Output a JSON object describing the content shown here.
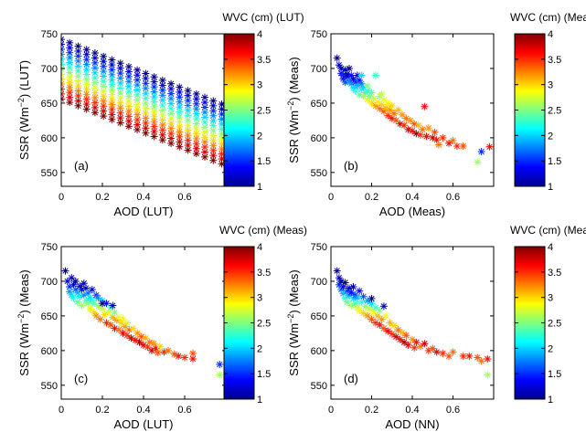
{
  "figure": {
    "panels": [
      {
        "id": "a",
        "label": "(a)",
        "xlabel": "AOD (LUT)",
        "ylabel_pre": "SSR (Wm",
        "ylabel_sup": "−2",
        "ylabel_post": ") (LUT)",
        "colorbar_title": "WVC (cm) (LUT)"
      },
      {
        "id": "b",
        "label": "(b)",
        "xlabel": "AOD (Meas)",
        "ylabel_pre": "SSR (Wm",
        "ylabel_sup": "−2",
        "ylabel_post": ") (Meas)",
        "colorbar_title": "WVC (cm) (Meas)"
      },
      {
        "id": "c",
        "label": "(c)",
        "xlabel": "AOD (LUT)",
        "ylabel_pre": "SSR (Wm",
        "ylabel_sup": "−2",
        "ylabel_post": ") (Meas)",
        "colorbar_title": "WVC (cm) (Meas)"
      },
      {
        "id": "d",
        "label": "(d)",
        "xlabel": "AOD (NN)",
        "ylabel_pre": "SSR (Wm",
        "ylabel_sup": "−2",
        "ylabel_post": ") (Meas)",
        "colorbar_title": "WVC (cm) (Meas)"
      }
    ],
    "marker": "*",
    "colormap": "jet"
  },
  "chart_data": [
    {
      "type": "scatter",
      "panel": "(a)",
      "xlabel": "AOD (LUT)",
      "ylabel": "SSR (Wm−2) (LUT)",
      "xlim": [
        0,
        0.8
      ],
      "ylim": [
        530,
        750
      ],
      "xticks": [
        0,
        0.2,
        0.4,
        0.6
      ],
      "yticks": [
        550,
        600,
        650,
        700,
        750
      ],
      "colorbar": {
        "label": "WVC (cm) (LUT)",
        "range": [
          1,
          4
        ],
        "ticks": [
          1,
          1.5,
          2,
          2.5,
          3,
          3.5,
          4
        ]
      },
      "grid": {
        "aod": [
          0,
          0.78,
          20
        ],
        "wvc": [
          1,
          4,
          13
        ],
        "ssr_at_aod0_wvc1": 742,
        "ssr_at_aod0_wvc4": 656,
        "slope_per_aod": -120
      },
      "points": []
    },
    {
      "type": "scatter",
      "panel": "(b)",
      "xlabel": "AOD (Meas)",
      "ylabel": "SSR (Wm−2) (Meas)",
      "xlim": [
        0,
        0.8
      ],
      "ylim": [
        530,
        750
      ],
      "xticks": [
        0,
        0.2,
        0.4,
        0.6
      ],
      "yticks": [
        550,
        600,
        650,
        700,
        750
      ],
      "colorbar": {
        "label": "WVC (cm) (Meas)",
        "range": [
          1,
          4
        ],
        "ticks": [
          1,
          1.5,
          2,
          2.5,
          3,
          3.5,
          4
        ]
      },
      "points": [
        [
          0.03,
          715,
          1.0
        ],
        [
          0.04,
          705,
          1.2
        ],
        [
          0.05,
          700,
          1.1
        ],
        [
          0.05,
          693,
          1.3
        ],
        [
          0.06,
          690,
          1.5
        ],
        [
          0.06,
          685,
          1.4
        ],
        [
          0.07,
          698,
          1.2
        ],
        [
          0.07,
          680,
          1.6
        ],
        [
          0.08,
          688,
          1.3
        ],
        [
          0.08,
          692,
          1.1
        ],
        [
          0.09,
          700,
          1.0
        ],
        [
          0.09,
          682,
          1.7
        ],
        [
          0.1,
          678,
          1.8
        ],
        [
          0.1,
          690,
          1.4
        ],
        [
          0.11,
          685,
          1.2
        ],
        [
          0.11,
          672,
          2.0
        ],
        [
          0.12,
          680,
          1.5
        ],
        [
          0.12,
          668,
          2.2
        ],
        [
          0.13,
          690,
          1.1
        ],
        [
          0.13,
          675,
          1.9
        ],
        [
          0.14,
          683,
          1.4
        ],
        [
          0.14,
          662,
          2.4
        ],
        [
          0.15,
          670,
          2.1
        ],
        [
          0.15,
          678,
          1.7
        ],
        [
          0.16,
          660,
          2.6
        ],
        [
          0.16,
          673,
          2.0
        ],
        [
          0.17,
          665,
          2.3
        ],
        [
          0.18,
          655,
          2.8
        ],
        [
          0.18,
          668,
          2.2
        ],
        [
          0.19,
          660,
          2.5
        ],
        [
          0.2,
          650,
          3.0
        ],
        [
          0.2,
          665,
          2.4
        ],
        [
          0.21,
          657,
          2.7
        ],
        [
          0.22,
          646,
          3.2
        ],
        [
          0.22,
          690,
          2.3
        ],
        [
          0.23,
          652,
          2.9
        ],
        [
          0.24,
          642,
          3.3
        ],
        [
          0.24,
          660,
          2.6
        ],
        [
          0.25,
          648,
          3.0
        ],
        [
          0.26,
          638,
          3.4
        ],
        [
          0.26,
          655,
          2.8
        ],
        [
          0.27,
          643,
          3.1
        ],
        [
          0.28,
          632,
          3.5
        ],
        [
          0.28,
          650,
          2.9
        ],
        [
          0.29,
          640,
          3.2
        ],
        [
          0.3,
          628,
          3.6
        ],
        [
          0.3,
          646,
          3.0
        ],
        [
          0.31,
          635,
          3.3
        ],
        [
          0.32,
          625,
          3.4
        ],
        [
          0.33,
          640,
          3.1
        ],
        [
          0.34,
          620,
          3.7
        ],
        [
          0.35,
          633,
          3.2
        ],
        [
          0.36,
          618,
          3.5
        ],
        [
          0.37,
          628,
          3.3
        ],
        [
          0.38,
          612,
          3.8
        ],
        [
          0.39,
          625,
          3.2
        ],
        [
          0.4,
          610,
          3.6
        ],
        [
          0.41,
          620,
          3.4
        ],
        [
          0.42,
          606,
          3.9
        ],
        [
          0.43,
          618,
          3.1
        ],
        [
          0.44,
          604,
          3.5
        ],
        [
          0.45,
          612,
          3.3
        ],
        [
          0.46,
          645,
          3.6
        ],
        [
          0.47,
          602,
          3.7
        ],
        [
          0.48,
          614,
          3.2
        ],
        [
          0.5,
          600,
          3.8
        ],
        [
          0.51,
          608,
          3.4
        ],
        [
          0.52,
          597,
          3.6
        ],
        [
          0.53,
          590,
          3.3
        ],
        [
          0.55,
          600,
          3.5
        ],
        [
          0.58,
          592,
          3.6
        ],
        [
          0.6,
          596,
          3.3
        ],
        [
          0.62,
          588,
          3.5
        ],
        [
          0.65,
          588,
          3.4
        ],
        [
          0.72,
          565,
          2.6
        ],
        [
          0.74,
          580,
          1.5
        ],
        [
          0.78,
          587,
          3.6
        ],
        [
          0.18,
          675,
          2.5
        ],
        [
          0.25,
          663,
          2.7
        ],
        [
          0.15,
          690,
          2.0
        ]
      ]
    },
    {
      "type": "scatter",
      "panel": "(c)",
      "xlabel": "AOD (LUT)",
      "ylabel": "SSR (Wm−2) (Meas)",
      "xlim": [
        0,
        0.8
      ],
      "ylim": [
        530,
        750
      ],
      "xticks": [
        0,
        0.2,
        0.4,
        0.6
      ],
      "yticks": [
        550,
        600,
        650,
        700,
        750
      ],
      "colorbar": {
        "label": "WVC (cm) (Meas)",
        "range": [
          1,
          4
        ],
        "ticks": [
          1,
          1.5,
          2,
          2.5,
          3,
          3.5,
          4
        ]
      },
      "points": [
        [
          0.02,
          715,
          1.0
        ],
        [
          0.03,
          700,
          1.2
        ],
        [
          0.04,
          692,
          1.5
        ],
        [
          0.04,
          685,
          1.8
        ],
        [
          0.05,
          705,
          1.1
        ],
        [
          0.05,
          680,
          2.0
        ],
        [
          0.06,
          695,
          1.3
        ],
        [
          0.06,
          676,
          2.2
        ],
        [
          0.07,
          688,
          1.6
        ],
        [
          0.07,
          700,
          1.0
        ],
        [
          0.08,
          683,
          1.9
        ],
        [
          0.08,
          670,
          2.4
        ],
        [
          0.09,
          693,
          1.2
        ],
        [
          0.09,
          678,
          2.1
        ],
        [
          0.1,
          688,
          1.4
        ],
        [
          0.1,
          665,
          2.6
        ],
        [
          0.11,
          680,
          1.8
        ],
        [
          0.11,
          697,
          1.1
        ],
        [
          0.12,
          672,
          2.3
        ],
        [
          0.12,
          690,
          1.3
        ],
        [
          0.13,
          668,
          2.5
        ],
        [
          0.13,
          683,
          1.7
        ],
        [
          0.14,
          660,
          2.8
        ],
        [
          0.14,
          676,
          2.0
        ],
        [
          0.15,
          672,
          2.2
        ],
        [
          0.15,
          688,
          1.2
        ],
        [
          0.16,
          655,
          3.0
        ],
        [
          0.16,
          668,
          2.4
        ],
        [
          0.17,
          680,
          1.5
        ],
        [
          0.17,
          650,
          3.2
        ],
        [
          0.18,
          664,
          2.6
        ],
        [
          0.18,
          676,
          1.8
        ],
        [
          0.19,
          645,
          3.3
        ],
        [
          0.2,
          660,
          2.7
        ],
        [
          0.2,
          672,
          2.0
        ],
        [
          0.21,
          652,
          3.0
        ],
        [
          0.22,
          640,
          3.5
        ],
        [
          0.22,
          668,
          1.4
        ],
        [
          0.23,
          655,
          2.8
        ],
        [
          0.24,
          637,
          3.4
        ],
        [
          0.24,
          662,
          2.3
        ],
        [
          0.25,
          648,
          3.1
        ],
        [
          0.26,
          632,
          3.6
        ],
        [
          0.26,
          655,
          2.5
        ],
        [
          0.27,
          644,
          3.2
        ],
        [
          0.28,
          630,
          3.3
        ],
        [
          0.28,
          648,
          2.8
        ],
        [
          0.29,
          640,
          3.0
        ],
        [
          0.3,
          625,
          3.7
        ],
        [
          0.3,
          645,
          2.9
        ],
        [
          0.31,
          635,
          3.2
        ],
        [
          0.32,
          622,
          3.5
        ],
        [
          0.32,
          640,
          2.7
        ],
        [
          0.33,
          630,
          3.3
        ],
        [
          0.34,
          618,
          3.8
        ],
        [
          0.35,
          632,
          3.0
        ],
        [
          0.36,
          615,
          3.6
        ],
        [
          0.37,
          625,
          3.2
        ],
        [
          0.38,
          612,
          3.9
        ],
        [
          0.39,
          620,
          3.4
        ],
        [
          0.4,
          608,
          3.7
        ],
        [
          0.41,
          618,
          3.1
        ],
        [
          0.42,
          605,
          3.5
        ],
        [
          0.43,
          612,
          3.3
        ],
        [
          0.44,
          600,
          3.8
        ],
        [
          0.45,
          610,
          3.2
        ],
        [
          0.46,
          603,
          3.6
        ],
        [
          0.47,
          597,
          3.4
        ],
        [
          0.48,
          606,
          3.0
        ],
        [
          0.5,
          598,
          3.5
        ],
        [
          0.52,
          600,
          3.3
        ],
        [
          0.55,
          595,
          3.4
        ],
        [
          0.57,
          592,
          3.6
        ],
        [
          0.6,
          590,
          3.5
        ],
        [
          0.64,
          596,
          3.4
        ],
        [
          0.64,
          588,
          3.6
        ],
        [
          0.77,
          580,
          1.5
        ],
        [
          0.77,
          565,
          2.6
        ],
        [
          0.25,
          665,
          1.2
        ],
        [
          0.2,
          668,
          1.0
        ]
      ]
    },
    {
      "type": "scatter",
      "panel": "(d)",
      "xlabel": "AOD (NN)",
      "ylabel": "SSR (Wm−2) (Meas)",
      "xlim": [
        0,
        0.8
      ],
      "ylim": [
        530,
        750
      ],
      "xticks": [
        0,
        0.2,
        0.4,
        0.6
      ],
      "yticks": [
        550,
        600,
        650,
        700,
        750
      ],
      "colorbar": {
        "label": "WVC (cm) (Meas)",
        "range": [
          1,
          4
        ],
        "ticks": [
          1,
          1.5,
          2,
          2.5,
          3,
          3.5,
          4
        ]
      },
      "points": [
        [
          0.03,
          715,
          1.0
        ],
        [
          0.04,
          705,
          1.2
        ],
        [
          0.04,
          695,
          1.5
        ],
        [
          0.05,
          700,
          1.1
        ],
        [
          0.05,
          688,
          1.7
        ],
        [
          0.06,
          692,
          1.3
        ],
        [
          0.06,
          682,
          1.9
        ],
        [
          0.07,
          698,
          1.0
        ],
        [
          0.07,
          676,
          2.2
        ],
        [
          0.08,
          686,
          1.6
        ],
        [
          0.08,
          670,
          2.4
        ],
        [
          0.09,
          690,
          1.2
        ],
        [
          0.09,
          680,
          1.8
        ],
        [
          0.1,
          665,
          2.6
        ],
        [
          0.1,
          684,
          1.4
        ],
        [
          0.11,
          675,
          2.0
        ],
        [
          0.11,
          692,
          1.1
        ],
        [
          0.12,
          668,
          2.3
        ],
        [
          0.12,
          680,
          1.5
        ],
        [
          0.13,
          662,
          2.7
        ],
        [
          0.13,
          676,
          1.9
        ],
        [
          0.14,
          658,
          2.9
        ],
        [
          0.14,
          686,
          1.3
        ],
        [
          0.15,
          670,
          2.2
        ],
        [
          0.16,
          654,
          3.0
        ],
        [
          0.16,
          678,
          1.6
        ],
        [
          0.17,
          664,
          2.5
        ],
        [
          0.18,
          650,
          3.2
        ],
        [
          0.18,
          672,
          1.8
        ],
        [
          0.19,
          660,
          2.7
        ],
        [
          0.2,
          645,
          3.4
        ],
        [
          0.2,
          668,
          2.0
        ],
        [
          0.21,
          655,
          2.9
        ],
        [
          0.22,
          640,
          3.5
        ],
        [
          0.22,
          662,
          2.3
        ],
        [
          0.23,
          650,
          3.1
        ],
        [
          0.24,
          637,
          3.6
        ],
        [
          0.24,
          658,
          2.5
        ],
        [
          0.25,
          645,
          3.2
        ],
        [
          0.26,
          632,
          3.4
        ],
        [
          0.27,
          650,
          2.8
        ],
        [
          0.28,
          628,
          3.7
        ],
        [
          0.29,
          640,
          3.1
        ],
        [
          0.3,
          624,
          3.5
        ],
        [
          0.31,
          636,
          3.0
        ],
        [
          0.32,
          620,
          3.8
        ],
        [
          0.33,
          630,
          3.3
        ],
        [
          0.34,
          616,
          3.6
        ],
        [
          0.35,
          626,
          3.1
        ],
        [
          0.36,
          612,
          3.9
        ],
        [
          0.37,
          622,
          3.4
        ],
        [
          0.38,
          608,
          3.7
        ],
        [
          0.4,
          616,
          3.2
        ],
        [
          0.41,
          604,
          3.5
        ],
        [
          0.42,
          612,
          3.6
        ],
        [
          0.44,
          606,
          3.3
        ],
        [
          0.46,
          610,
          3.8
        ],
        [
          0.48,
          600,
          3.5
        ],
        [
          0.5,
          603,
          3.4
        ],
        [
          0.52,
          598,
          3.7
        ],
        [
          0.55,
          596,
          3.5
        ],
        [
          0.58,
          592,
          3.4
        ],
        [
          0.6,
          598,
          3.3
        ],
        [
          0.65,
          592,
          3.5
        ],
        [
          0.68,
          592,
          3.6
        ],
        [
          0.72,
          590,
          3.4
        ],
        [
          0.77,
          588,
          3.6
        ],
        [
          0.77,
          565,
          2.6
        ],
        [
          0.74,
          585,
          3.3
        ],
        [
          0.2,
          675,
          1.0
        ],
        [
          0.26,
          664,
          1.2
        ]
      ]
    }
  ]
}
